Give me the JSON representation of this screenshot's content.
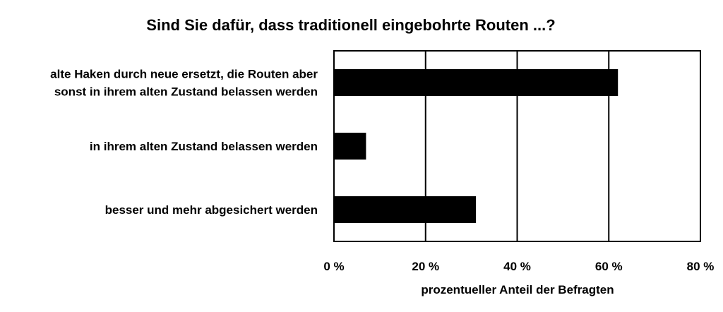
{
  "chart_data": {
    "type": "bar",
    "orientation": "horizontal",
    "title": "Sind Sie dafür, dass traditionell eingebohrte Routen ...?",
    "categories": [
      [
        "alte Haken durch neue ersetzt, die Routen aber",
        "sonst in ihrem alten Zustand belassen werden"
      ],
      [
        "in ihrem alten Zustand belassen werden"
      ],
      [
        "besser und mehr abgesichert werden"
      ]
    ],
    "values": [
      62,
      7,
      31
    ],
    "unit": "%",
    "xlabel": "prozentueller Anteil der Befragten",
    "ylabel": "",
    "xlim": [
      0,
      80
    ],
    "xticks": [
      0,
      20,
      40,
      60,
      80
    ],
    "xtick_labels": [
      "0 %",
      "20 %",
      "40 %",
      "60 %",
      "80 %"
    ],
    "grid": "vertical",
    "bar_color": "#000000",
    "legend": "none"
  }
}
